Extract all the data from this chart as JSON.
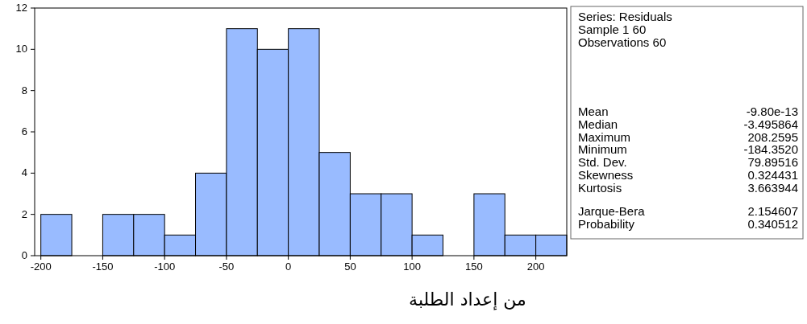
{
  "chart_data": [
    {
      "type": "histogram",
      "bins": [
        -200,
        -175,
        -150,
        -125,
        -100,
        -75,
        -50,
        -25,
        0,
        25,
        50,
        75,
        100,
        125,
        150,
        175,
        200,
        225
      ],
      "values": [
        2,
        0,
        2,
        2,
        1,
        4,
        11,
        10,
        11,
        5,
        3,
        3,
        1,
        0,
        3,
        1,
        1
      ],
      "color": "#99bbff",
      "xlim": [
        -205,
        225
      ],
      "xticks": [
        -200,
        -150,
        -100,
        -50,
        0,
        50,
        100,
        150,
        200
      ],
      "ylim": [
        0,
        12
      ],
      "yticks": [
        0,
        2,
        4,
        6,
        8,
        10,
        12
      ],
      "grid": false,
      "annotations": [
        "من إعداد الطلبة"
      ]
    },
    {
      "type": "other",
      "annotations": [
        "Series: Residuals",
        "Sample 1 60",
        "Observations 60",
        "Mean",
        "-9.80e-13",
        "Median",
        "-3.495864",
        "Maximum",
        "208.2595",
        "Minimum",
        "-184.3520",
        "Std. Dev.",
        "79.89516",
        "Skewness",
        "0.324431",
        "Kurtosis",
        "3.663944",
        "Jarque-Bera",
        "2.154607",
        "Probability",
        "0.340512"
      ]
    }
  ]
}
